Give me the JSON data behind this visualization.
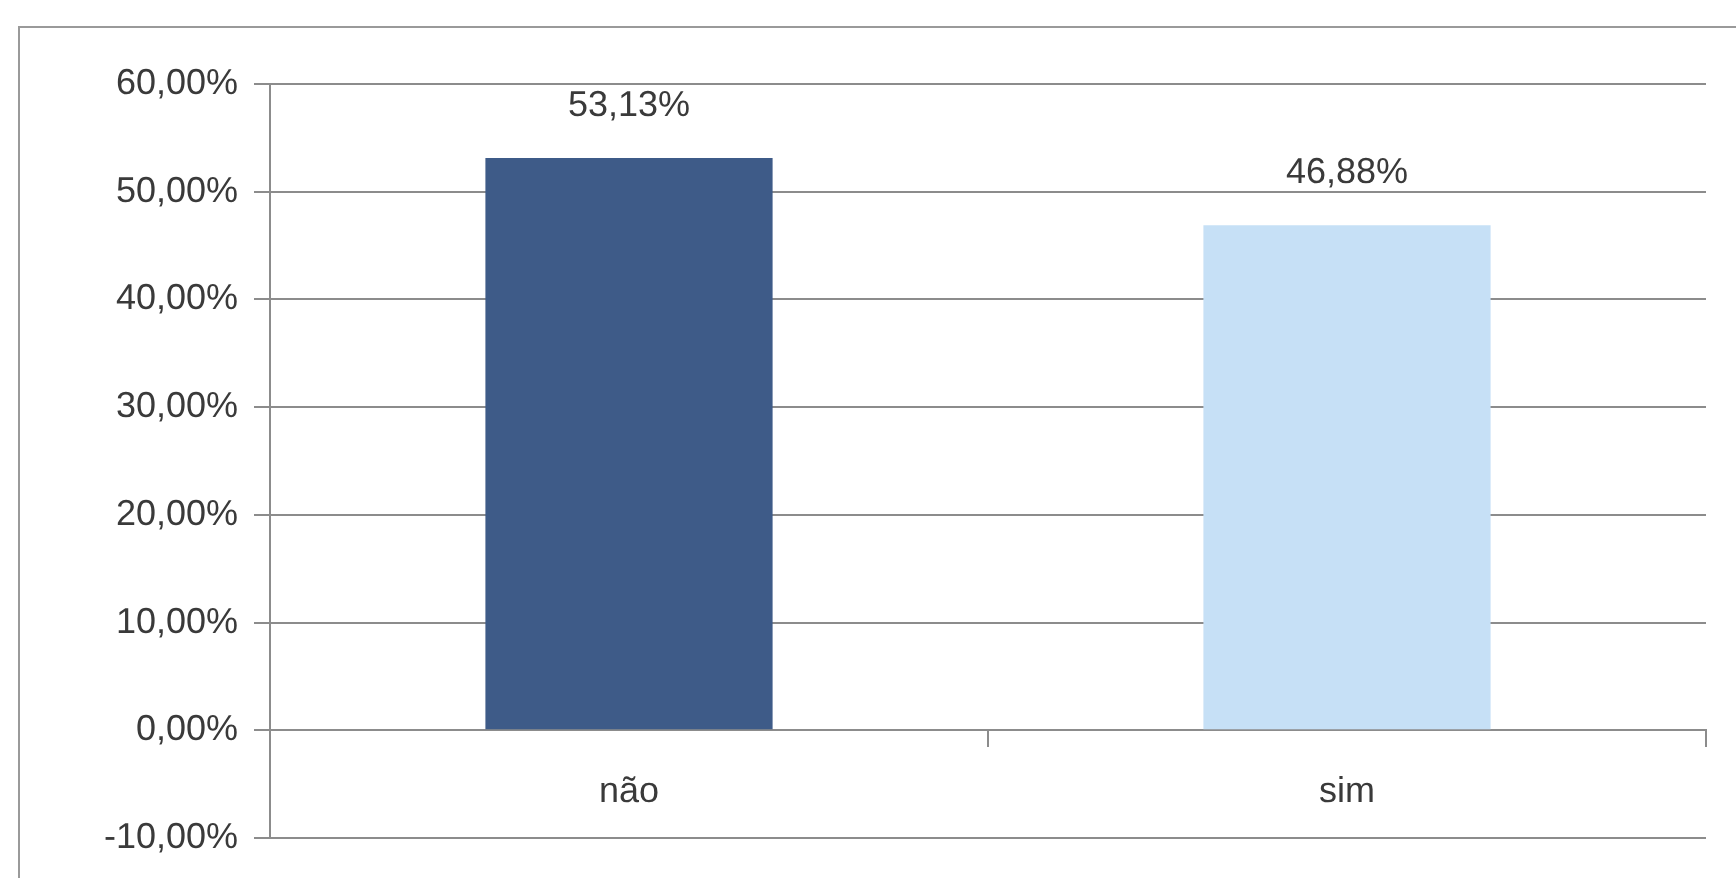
{
  "chart_data": {
    "type": "bar",
    "categories": [
      "não",
      "sim"
    ],
    "values": [
      53.13,
      46.88
    ],
    "colors": [
      "#3e5b88",
      "#c6e0f6"
    ],
    "value_labels": [
      "53,13%",
      "46,88%"
    ],
    "ylim": [
      -10,
      60
    ],
    "yticks": [
      {
        "value": -10,
        "label": "-10,00%"
      },
      {
        "value": 0,
        "label": "0,00%"
      },
      {
        "value": 10,
        "label": "10,00%"
      },
      {
        "value": 20,
        "label": "20,00%"
      },
      {
        "value": 30,
        "label": "30,00%"
      },
      {
        "value": 40,
        "label": "40,00%"
      },
      {
        "value": 50,
        "label": "50,00%"
      },
      {
        "value": 60,
        "label": "60,00%"
      }
    ],
    "grid": "y"
  }
}
